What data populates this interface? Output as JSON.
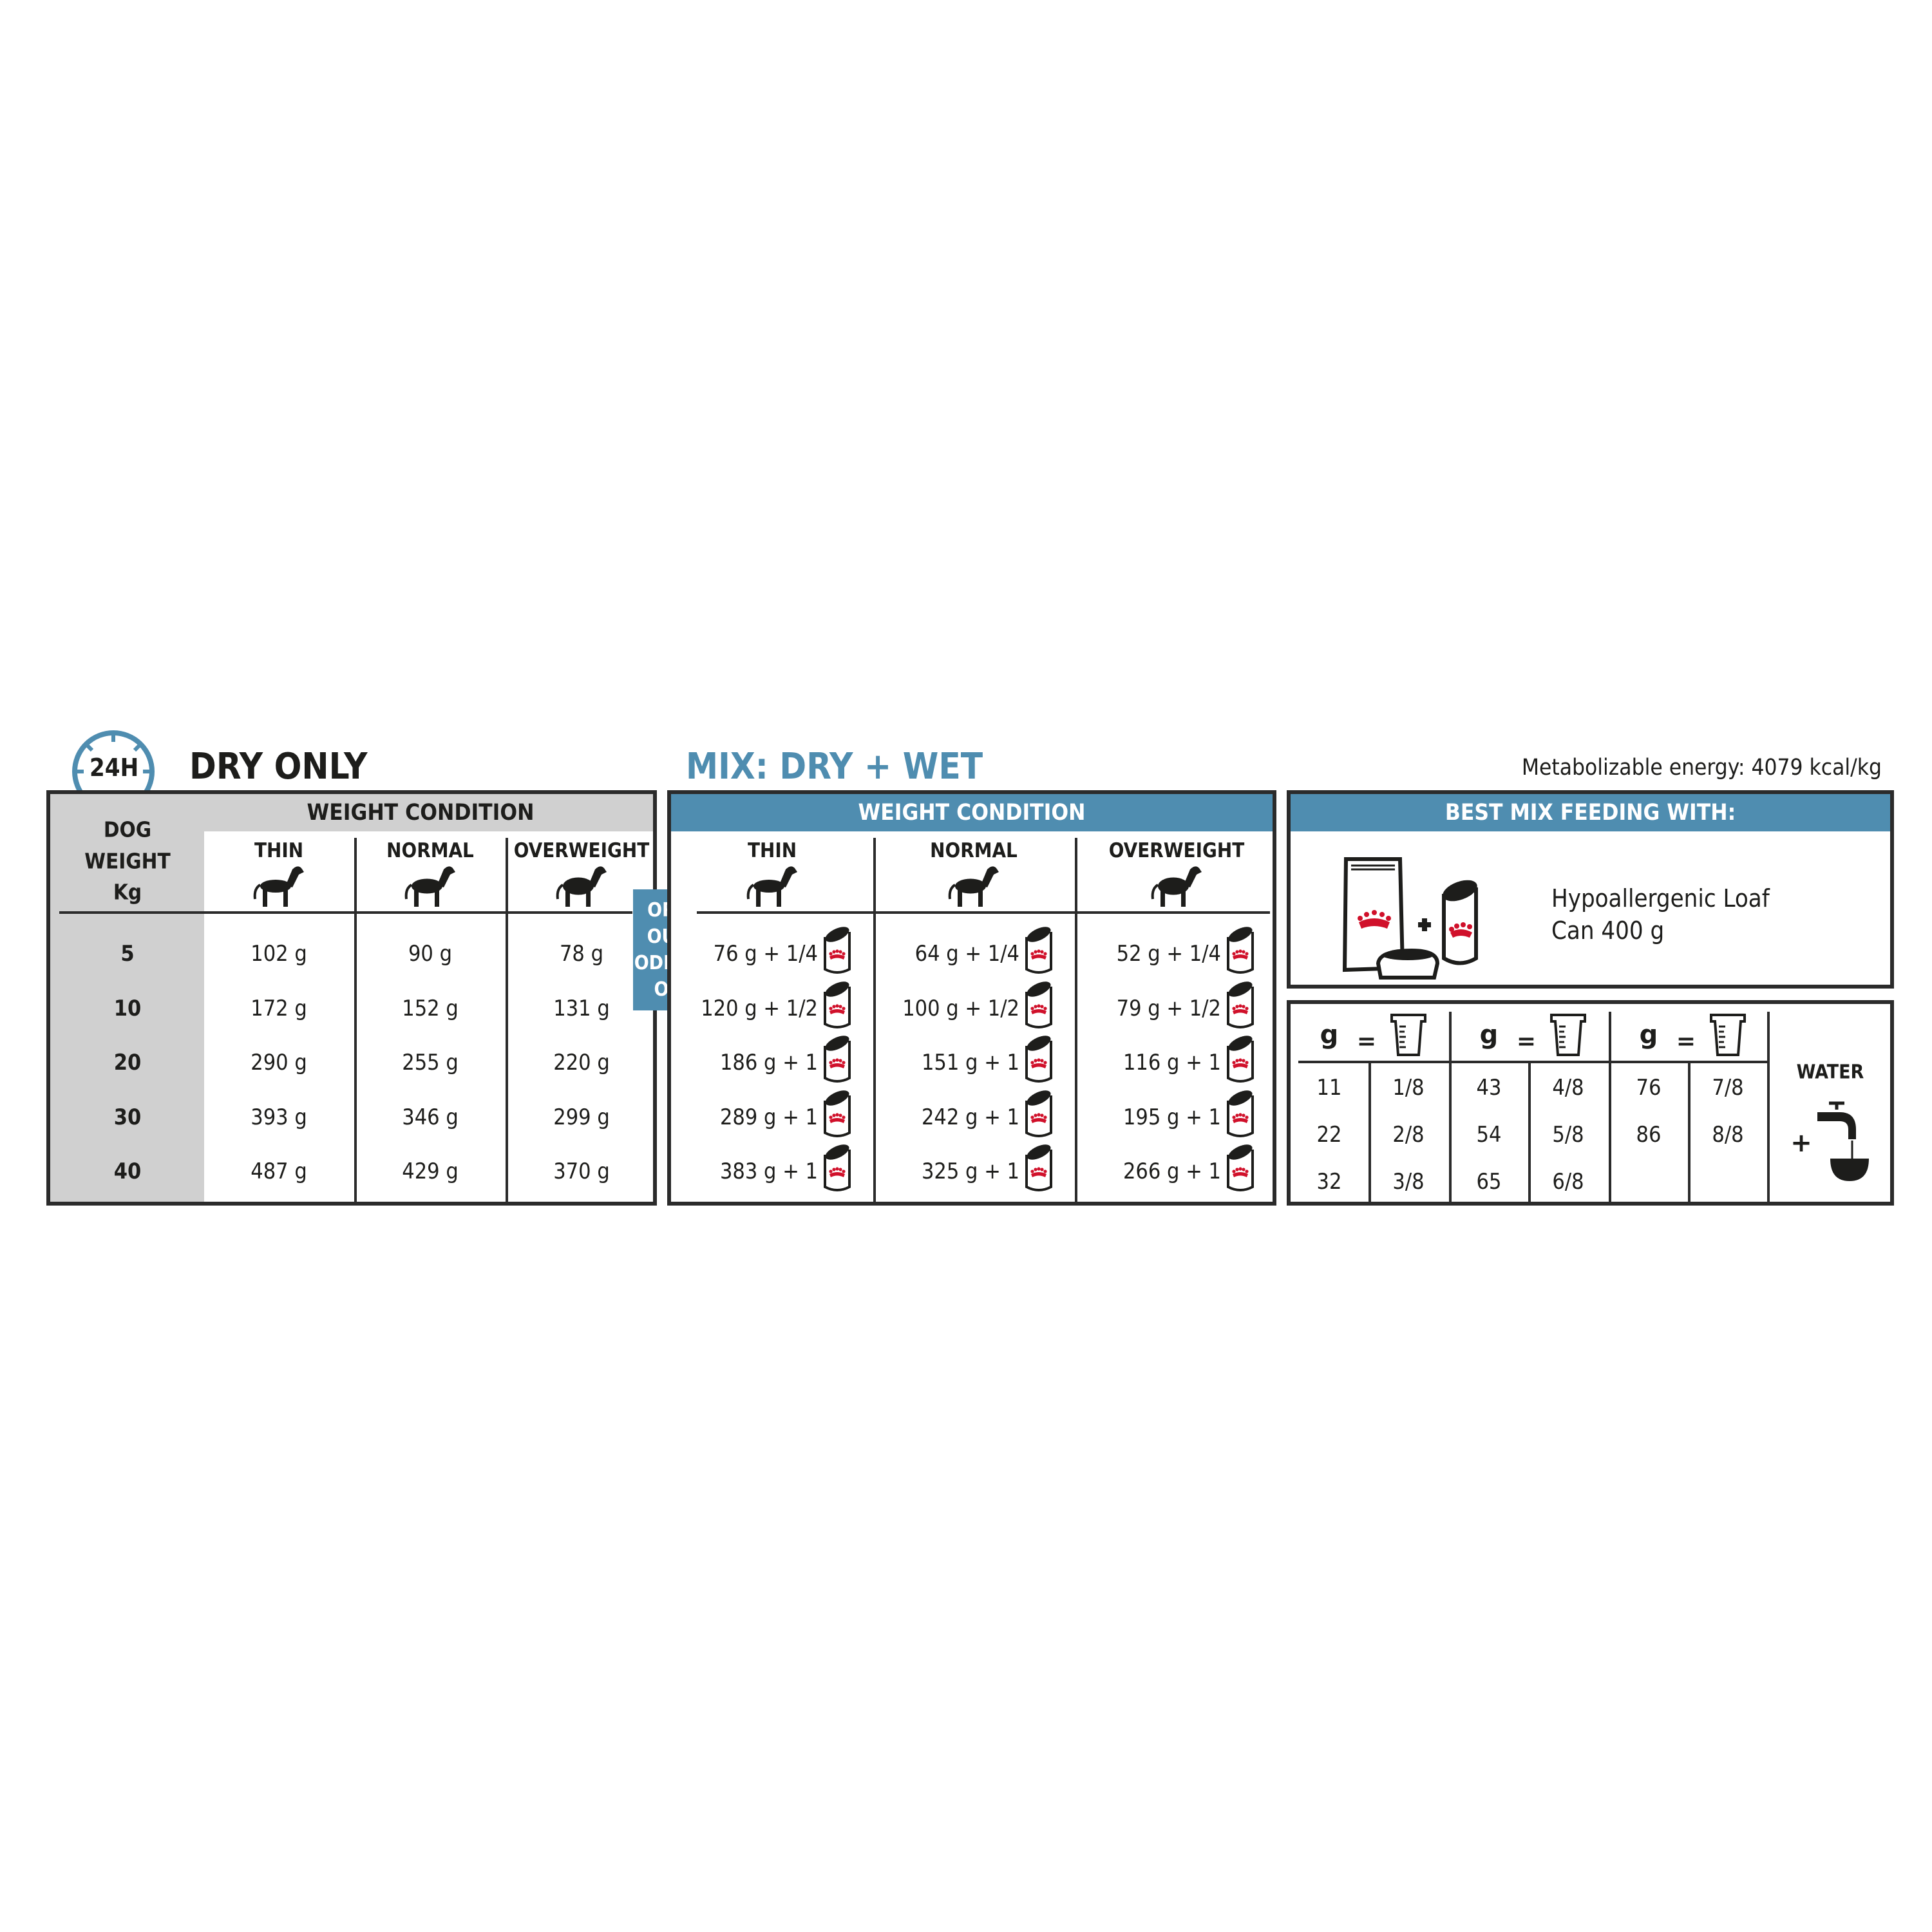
{
  "colors": {
    "accent": "#4f8db0",
    "grey": "#d0d0d0",
    "red": "#d0102a",
    "ink": "#1d1d1b"
  },
  "dry": {
    "badge": "24H",
    "title": "DRY ONLY",
    "weight_header": [
      "DOG",
      "WEIGHT",
      "Kg"
    ],
    "condition_header": "WEIGHT CONDITION",
    "columns": [
      "THIN",
      "NORMAL",
      "OVERWEIGHT"
    ],
    "rows": [
      {
        "weight": "5",
        "values": [
          "102 g",
          "90 g",
          "78 g"
        ]
      },
      {
        "weight": "10",
        "values": [
          "172 g",
          "152 g",
          "131 g"
        ]
      },
      {
        "weight": "20",
        "values": [
          "290 g",
          "255 g",
          "220 g"
        ]
      },
      {
        "weight": "30",
        "values": [
          "393 g",
          "346 g",
          "299 g"
        ]
      },
      {
        "weight": "40",
        "values": [
          "487 g",
          "429 g",
          "370 g"
        ]
      }
    ]
  },
  "or_badge": [
    "OR",
    "OU",
    "ODER",
    "O"
  ],
  "mix": {
    "title": "MIX: DRY + WET",
    "condition_header": "WEIGHT CONDITION",
    "columns": [
      "THIN",
      "NORMAL",
      "OVERWEIGHT"
    ],
    "rows": [
      [
        "76 g + 1/4",
        "64 g + 1/4",
        "52 g + 1/4"
      ],
      [
        "120 g + 1/2",
        "100 g + 1/2",
        "79 g + 1/2"
      ],
      [
        "186 g + 1",
        "151 g + 1",
        "116 g + 1"
      ],
      [
        "289 g + 1",
        "242 g + 1",
        "195 g + 1"
      ],
      [
        "383 g + 1",
        "325 g + 1",
        "266 g + 1"
      ]
    ]
  },
  "energy": "Metabolizable energy: 4079 kcal/kg",
  "best_mix": {
    "header": "BEST MIX FEEDING WITH:",
    "product_line1": "Hypoallergenic Loaf",
    "product_line2": "Can 400 g"
  },
  "cup_table": {
    "g_label": "g",
    "eq_label": "=",
    "groups": [
      [
        [
          "11",
          "1/8"
        ],
        [
          "22",
          "2/8"
        ],
        [
          "32",
          "3/8"
        ]
      ],
      [
        [
          "43",
          "4/8"
        ],
        [
          "54",
          "5/8"
        ],
        [
          "65",
          "6/8"
        ]
      ],
      [
        [
          "76",
          "7/8"
        ],
        [
          "86",
          "8/8"
        ]
      ]
    ],
    "water_label": "WATER",
    "plus": "+"
  },
  "icons": {
    "clock": "clock-24h-icon",
    "dog_thin": "dog-thin-icon",
    "dog_normal": "dog-normal-icon",
    "dog_overweight": "dog-overweight-icon",
    "can": "can-icon",
    "bag": "food-bag-icon",
    "cup": "measuring-cup-icon",
    "tap": "water-tap-icon"
  }
}
